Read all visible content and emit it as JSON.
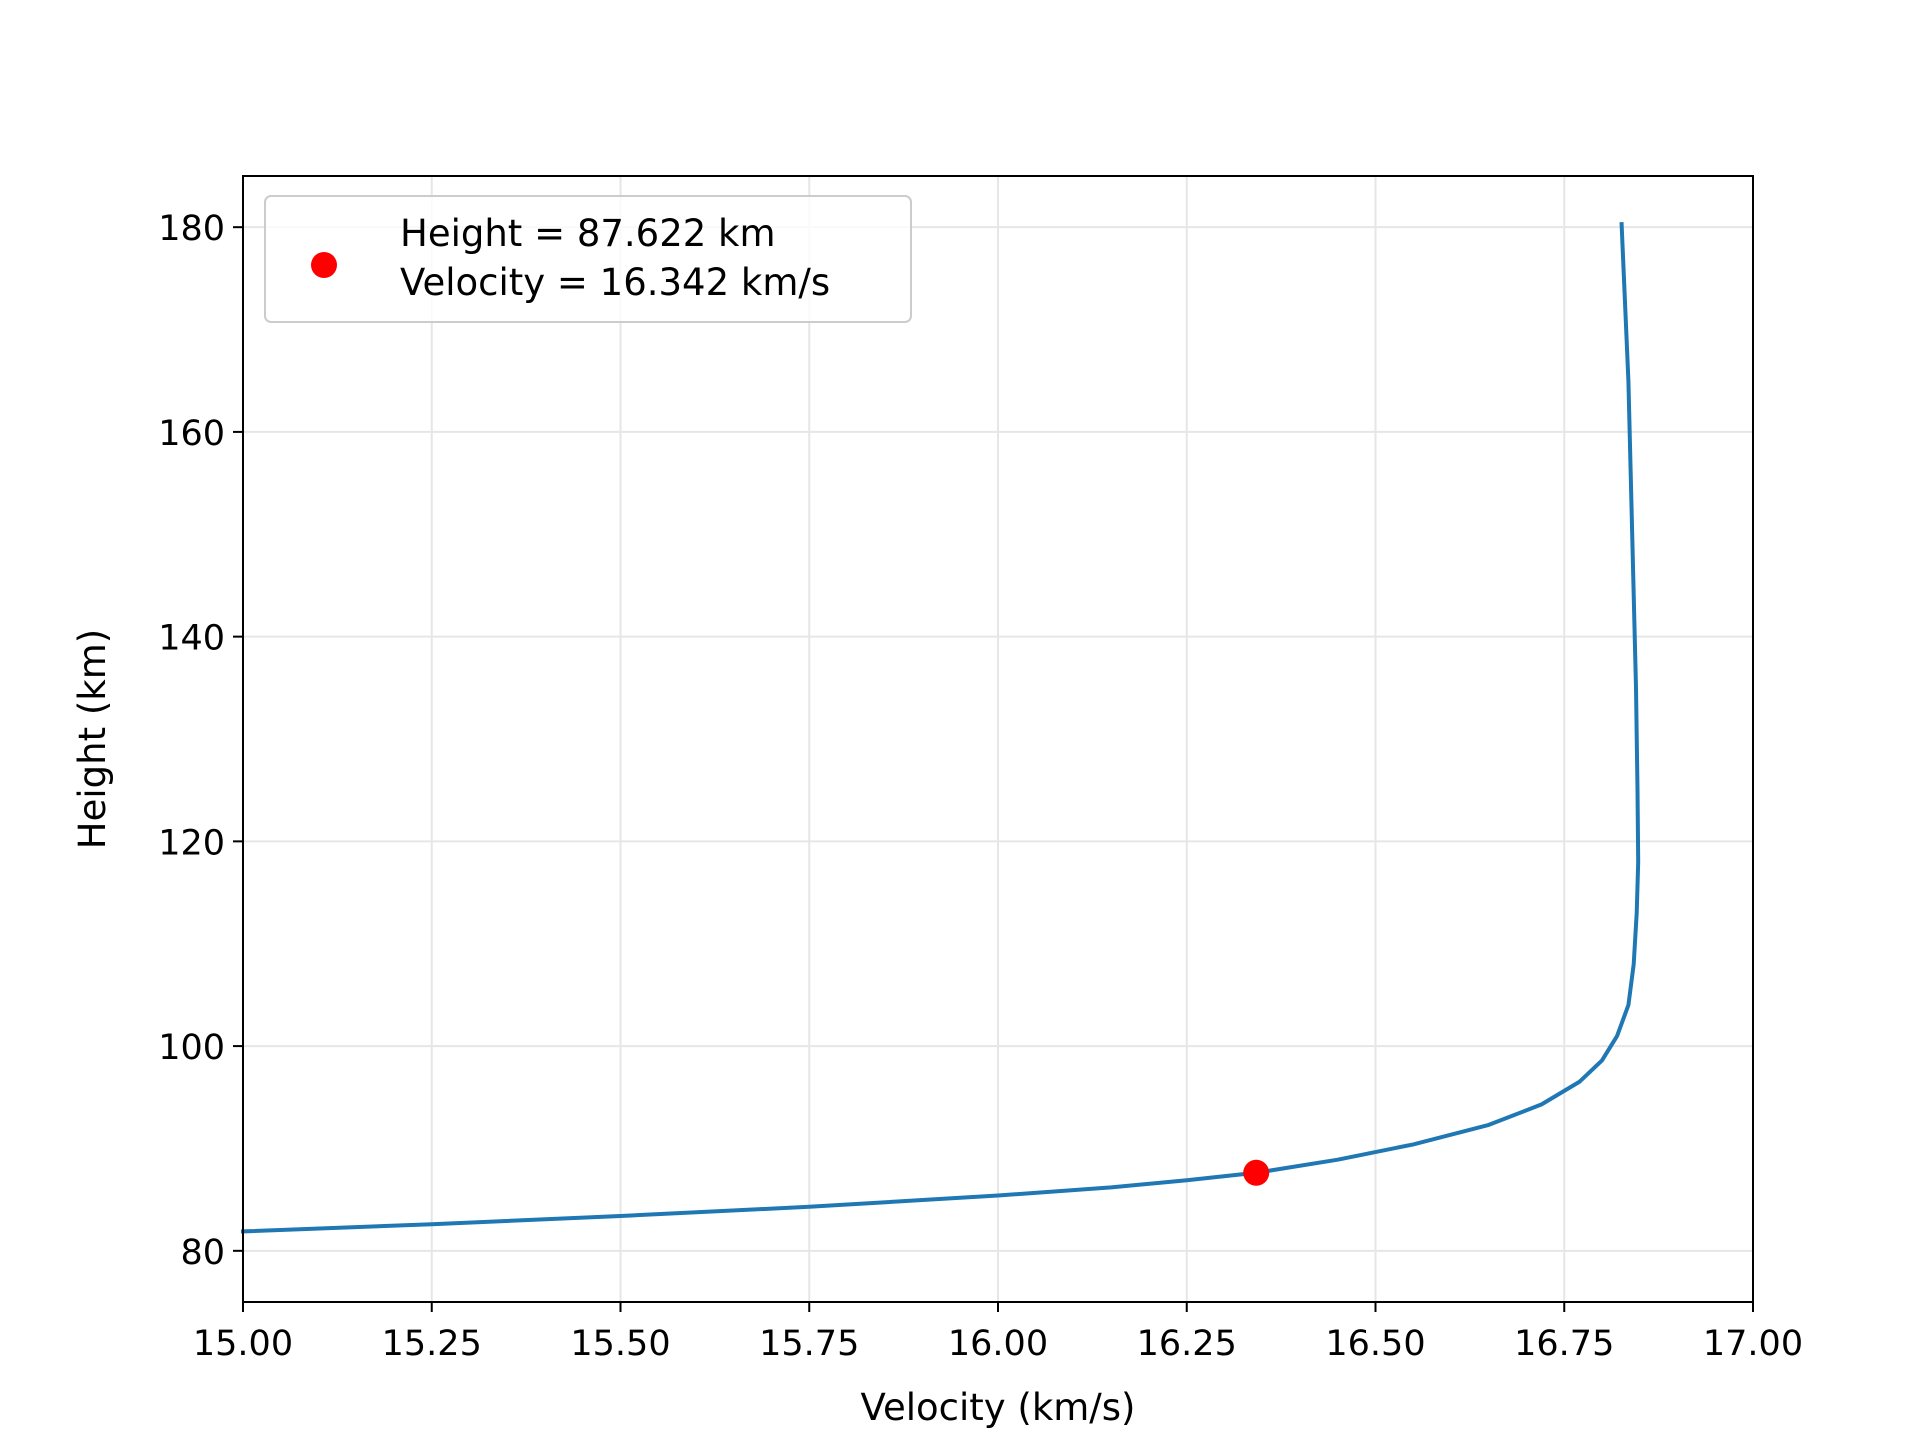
{
  "chart_data": {
    "type": "line",
    "title": "",
    "xlabel": "Velocity (km/s)",
    "ylabel": "Height (km)",
    "xlim": [
      15.0,
      17.0
    ],
    "ylim": [
      75,
      185
    ],
    "x_ticks": [
      "15.00",
      "15.25",
      "15.50",
      "15.75",
      "16.00",
      "16.25",
      "16.50",
      "16.75",
      "17.00"
    ],
    "y_ticks": [
      "80",
      "100",
      "120",
      "140",
      "160",
      "180"
    ],
    "grid": true,
    "legend_position": "top-left",
    "series": [
      {
        "name": "",
        "color": "#1f77b4",
        "points": [
          {
            "x": 15.0,
            "y": 81.9
          },
          {
            "x": 15.25,
            "y": 82.6
          },
          {
            "x": 15.5,
            "y": 83.4
          },
          {
            "x": 15.75,
            "y": 84.3
          },
          {
            "x": 16.0,
            "y": 85.4
          },
          {
            "x": 16.15,
            "y": 86.2
          },
          {
            "x": 16.25,
            "y": 86.9
          },
          {
            "x": 16.342,
            "y": 87.622
          },
          {
            "x": 16.45,
            "y": 88.9
          },
          {
            "x": 16.55,
            "y": 90.4
          },
          {
            "x": 16.65,
            "y": 92.3
          },
          {
            "x": 16.72,
            "y": 94.3
          },
          {
            "x": 16.77,
            "y": 96.5
          },
          {
            "x": 16.8,
            "y": 98.6
          },
          {
            "x": 16.82,
            "y": 101.0
          },
          {
            "x": 16.835,
            "y": 104.0
          },
          {
            "x": 16.842,
            "y": 108.0
          },
          {
            "x": 16.846,
            "y": 113.0
          },
          {
            "x": 16.848,
            "y": 118.0
          },
          {
            "x": 16.847,
            "y": 125.0
          },
          {
            "x": 16.845,
            "y": 135.0
          },
          {
            "x": 16.84,
            "y": 150.0
          },
          {
            "x": 16.835,
            "y": 165.0
          },
          {
            "x": 16.826,
            "y": 180.3
          }
        ]
      }
    ],
    "highlight_point": {
      "x": 16.342,
      "y": 87.622,
      "color": "#ff0000",
      "legend_line1": "Height = 87.622 km",
      "legend_line2": "Velocity = 16.342 km/s"
    }
  }
}
